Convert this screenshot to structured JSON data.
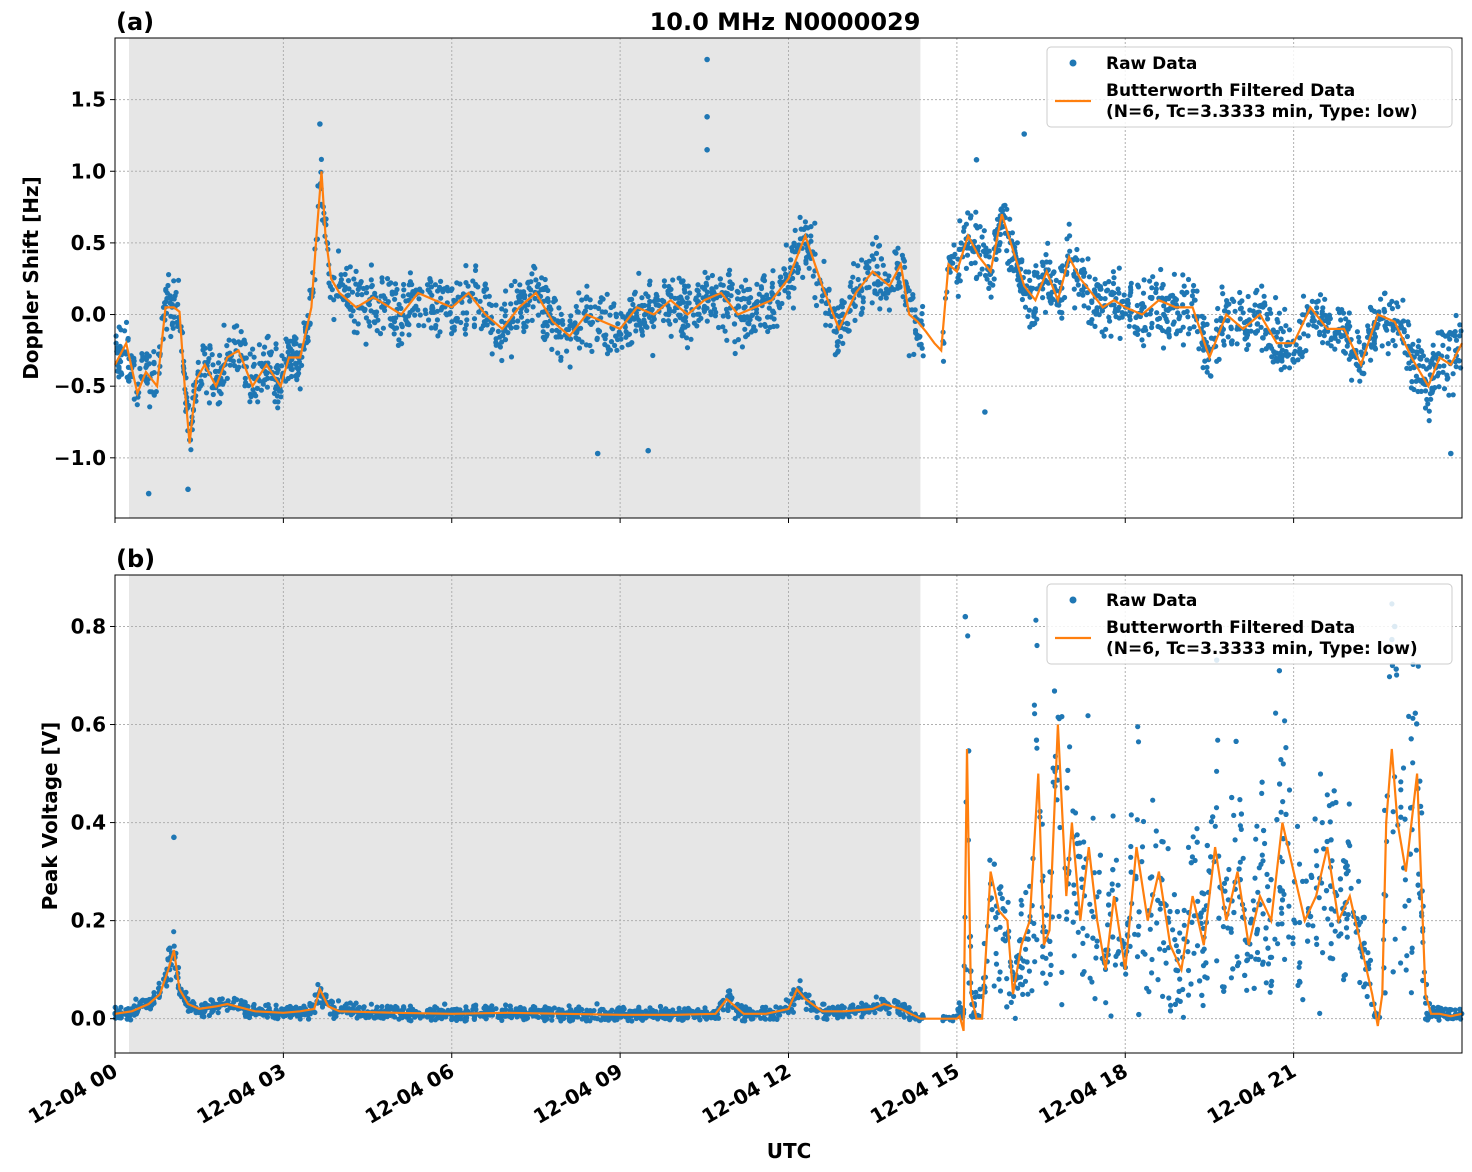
{
  "figure": {
    "title": "10.0 MHz N0000029",
    "xlabel": "UTC"
  },
  "colors": {
    "raw": "#1f77b4",
    "filtered": "#ff7f0e",
    "shade": "#e6e6e6",
    "grid": "#b0b0b0"
  },
  "legend": {
    "raw_label": "Raw Data",
    "filtered_label_line1": "Butterworth Filtered Data",
    "filtered_label_line2": "(N=6, Tc=3.3333 min, Type: low)"
  },
  "x_ticks": [
    "12-04 00",
    "12-04 03",
    "12-04 06",
    "12-04 09",
    "12-04 12",
    "12-04 15",
    "12-04 18",
    "12-04 21"
  ],
  "chart_data": [
    {
      "type": "scatter",
      "panel": "(a)",
      "ylabel": "Doppler Shift [Hz]",
      "xlim_hours": [
        0,
        24
      ],
      "ylim": [
        -1.42,
        1.93
      ],
      "yticks": [
        -1.0,
        -0.5,
        0.0,
        0.5,
        1.0,
        1.5
      ],
      "ytick_labels": [
        "−1.0",
        "−0.5",
        "0.0",
        "0.5",
        "1.0",
        "1.5"
      ],
      "shaded_region_hours": [
        0.25,
        14.35
      ],
      "grid": true,
      "legend_position": "top-right",
      "series": [
        {
          "name": "Butterworth Filtered Data",
          "x_hours": [
            0.0,
            0.2,
            0.4,
            0.55,
            0.75,
            0.9,
            1.05,
            1.15,
            1.25,
            1.33,
            1.45,
            1.6,
            1.8,
            2.0,
            2.2,
            2.45,
            2.7,
            2.95,
            3.1,
            3.3,
            3.5,
            3.6,
            3.68,
            3.75,
            3.85,
            4.0,
            4.3,
            4.6,
            4.9,
            5.1,
            5.4,
            5.7,
            6.0,
            6.3,
            6.6,
            6.9,
            7.2,
            7.5,
            7.8,
            8.1,
            8.4,
            8.7,
            9.0,
            9.3,
            9.6,
            9.9,
            10.2,
            10.5,
            10.8,
            11.1,
            11.4,
            11.7,
            12.0,
            12.3,
            12.6,
            12.9,
            13.2,
            13.5,
            13.8,
            14.0,
            14.15,
            14.3,
            14.45,
            14.6,
            14.72,
            14.85,
            15.0,
            15.2,
            15.4,
            15.6,
            15.8,
            16.0,
            16.2,
            16.4,
            16.6,
            16.8,
            17.0,
            17.2,
            17.4,
            17.6,
            17.8,
            18.0,
            18.3,
            18.6,
            18.9,
            19.2,
            19.5,
            19.8,
            20.1,
            20.4,
            20.7,
            21.0,
            21.3,
            21.6,
            21.9,
            22.2,
            22.5,
            22.8,
            23.1,
            23.4,
            23.6,
            23.8,
            24.0
          ],
          "y": [
            -0.35,
            -0.2,
            -0.55,
            -0.4,
            -0.5,
            0.05,
            0.05,
            0.02,
            -0.55,
            -0.9,
            -0.45,
            -0.35,
            -0.5,
            -0.3,
            -0.25,
            -0.5,
            -0.35,
            -0.5,
            -0.3,
            -0.3,
            0.05,
            0.6,
            1.0,
            0.55,
            0.25,
            0.15,
            0.05,
            0.12,
            0.05,
            0.0,
            0.15,
            0.1,
            0.05,
            0.15,
            0.0,
            -0.1,
            0.05,
            0.15,
            -0.05,
            -0.15,
            0.0,
            -0.05,
            -0.1,
            0.05,
            0.0,
            0.1,
            0.0,
            0.1,
            0.15,
            0.0,
            0.05,
            0.1,
            0.25,
            0.55,
            0.2,
            -0.1,
            0.15,
            0.3,
            0.2,
            0.35,
            0.0,
            -0.05,
            -0.12,
            -0.2,
            -0.25,
            0.35,
            0.3,
            0.55,
            0.4,
            0.3,
            0.7,
            0.45,
            0.2,
            0.1,
            0.3,
            0.1,
            0.4,
            0.25,
            0.15,
            0.05,
            0.1,
            0.05,
            0.0,
            0.1,
            0.05,
            0.05,
            -0.3,
            0.0,
            -0.1,
            0.0,
            -0.2,
            -0.2,
            0.05,
            -0.1,
            -0.1,
            -0.35,
            0.0,
            -0.05,
            -0.3,
            -0.5,
            -0.3,
            -0.35,
            -0.2
          ]
        },
        {
          "name": "Raw Data",
          "scatter_spread_hz": 0.22,
          "outliers": [
            {
              "x_hours": 10.55,
              "y": 1.78
            },
            {
              "x_hours": 10.55,
              "y": 1.38
            },
            {
              "x_hours": 10.55,
              "y": 1.15
            },
            {
              "x_hours": 3.65,
              "y": 1.33
            },
            {
              "x_hours": 16.2,
              "y": 1.26
            },
            {
              "x_hours": 15.35,
              "y": 1.08
            },
            {
              "x_hours": 8.6,
              "y": -0.97
            },
            {
              "x_hours": 9.5,
              "y": -0.95
            },
            {
              "x_hours": 15.5,
              "y": -0.68
            },
            {
              "x_hours": 23.8,
              "y": -0.97
            },
            {
              "x_hours": 0.6,
              "y": -1.25
            },
            {
              "x_hours": 1.3,
              "y": -1.22
            }
          ]
        }
      ]
    },
    {
      "type": "scatter",
      "panel": "(b)",
      "ylabel": "Peak Voltage [V]",
      "xlim_hours": [
        0,
        24
      ],
      "ylim": [
        -0.07,
        0.905
      ],
      "yticks": [
        0.0,
        0.2,
        0.4,
        0.6,
        0.8
      ],
      "ytick_labels": [
        "0.0",
        "0.2",
        "0.4",
        "0.6",
        "0.8"
      ],
      "shaded_region_hours": [
        0.25,
        14.35
      ],
      "grid": true,
      "legend_position": "top-right",
      "series": [
        {
          "name": "Butterworth Filtered Data",
          "x_hours": [
            0.0,
            0.3,
            0.6,
            0.8,
            0.95,
            1.05,
            1.15,
            1.3,
            1.5,
            1.8,
            2.0,
            2.5,
            3.0,
            3.3,
            3.55,
            3.65,
            3.8,
            4.0,
            5.0,
            6.0,
            7.0,
            8.0,
            9.0,
            10.0,
            10.7,
            10.9,
            11.2,
            11.6,
            12.0,
            12.15,
            12.3,
            12.6,
            13.0,
            13.5,
            13.7,
            14.0,
            14.35,
            15.0,
            15.05,
            15.12,
            15.18,
            15.25,
            15.35,
            15.45,
            15.6,
            15.75,
            15.9,
            16.0,
            16.15,
            16.3,
            16.45,
            16.55,
            16.65,
            16.8,
            16.95,
            17.05,
            17.2,
            17.35,
            17.5,
            17.65,
            17.8,
            18.0,
            18.2,
            18.4,
            18.6,
            18.8,
            19.0,
            19.2,
            19.4,
            19.6,
            19.8,
            20.0,
            20.2,
            20.4,
            20.6,
            20.8,
            21.0,
            21.2,
            21.4,
            21.6,
            21.8,
            22.0,
            22.2,
            22.4,
            22.5,
            22.58,
            22.65,
            22.75,
            22.85,
            23.0,
            23.2,
            23.35,
            23.45,
            23.6,
            23.8,
            24.0
          ],
          "y": [
            0.01,
            0.015,
            0.03,
            0.05,
            0.1,
            0.14,
            0.06,
            0.03,
            0.02,
            0.025,
            0.03,
            0.015,
            0.012,
            0.015,
            0.02,
            0.06,
            0.025,
            0.015,
            0.012,
            0.01,
            0.012,
            0.01,
            0.008,
            0.008,
            0.01,
            0.04,
            0.01,
            0.01,
            0.02,
            0.06,
            0.04,
            0.015,
            0.015,
            0.02,
            0.03,
            0.02,
            0.0,
            0.0,
            0.005,
            -0.025,
            0.55,
            0.05,
            0.0,
            0.0,
            0.3,
            0.22,
            0.2,
            0.05,
            0.15,
            0.2,
            0.5,
            0.15,
            0.18,
            0.6,
            0.25,
            0.4,
            0.2,
            0.35,
            0.2,
            0.1,
            0.25,
            0.1,
            0.35,
            0.2,
            0.3,
            0.15,
            0.1,
            0.25,
            0.15,
            0.35,
            0.2,
            0.3,
            0.15,
            0.25,
            0.2,
            0.4,
            0.3,
            0.2,
            0.25,
            0.35,
            0.2,
            0.25,
            0.15,
            0.05,
            -0.015,
            0.05,
            0.4,
            0.55,
            0.4,
            0.3,
            0.5,
            0.05,
            0.01,
            0.01,
            0.005,
            0.01
          ]
        },
        {
          "name": "Raw Data",
          "outliers": [
            {
              "x_hours": 1.05,
              "y": 0.37
            },
            {
              "x_hours": 15.15,
              "y": 0.82
            },
            {
              "x_hours": 22.8,
              "y": 0.8
            }
          ]
        }
      ]
    }
  ]
}
